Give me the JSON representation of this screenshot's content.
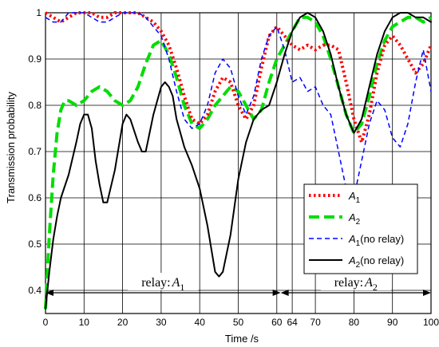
{
  "chart_data": {
    "type": "line",
    "xlabel": "Time /s",
    "ylabel": "Transmission probability",
    "xlim": [
      0,
      100
    ],
    "ylim": [
      0.35,
      1.0
    ],
    "x_ticks": [
      0,
      10,
      20,
      30,
      40,
      50,
      60,
      64,
      70,
      80,
      90,
      100
    ],
    "x_tick_labels": [
      "0",
      "10",
      "20",
      "30",
      "40",
      "50",
      "60",
      "64",
      "70",
      "80",
      "90",
      "100"
    ],
    "y_ticks": [
      0.4,
      0.5,
      0.6,
      0.7,
      0.8,
      0.9,
      1.0
    ],
    "y_tick_labels": [
      "0.4",
      "0.5",
      "0.6",
      "0.7",
      "0.8",
      "0.9",
      "1"
    ],
    "grid": true,
    "legend_position": "bottom-right",
    "annotations": [
      {
        "text_prefix": "relay:",
        "symbol": "A",
        "subscript": "1",
        "from": 0,
        "to": 61
      },
      {
        "text_prefix": "relay:",
        "symbol": "A",
        "subscript": "2",
        "from": 61,
        "to": 100
      }
    ],
    "series": [
      {
        "name": "A",
        "name_sub": "1",
        "name_suffix": "",
        "color": "#ff0000",
        "style": "dotted",
        "x": [
          0,
          2,
          4,
          6,
          8,
          10,
          12,
          14,
          16,
          18,
          20,
          22,
          24,
          26,
          28,
          30,
          32,
          34,
          36,
          38,
          40,
          42,
          44,
          46,
          48,
          50,
          52,
          54,
          56,
          58,
          60,
          61,
          62,
          64,
          66,
          68,
          70,
          72,
          74,
          76,
          78,
          80,
          82,
          84,
          86,
          88,
          90,
          92,
          94,
          96,
          98,
          100
        ],
        "y": [
          1.0,
          0.99,
          0.98,
          0.99,
          1.0,
          1.0,
          1.0,
          0.99,
          0.99,
          1.0,
          1.0,
          1.0,
          1.0,
          0.99,
          0.98,
          0.96,
          0.93,
          0.88,
          0.82,
          0.77,
          0.76,
          0.78,
          0.83,
          0.86,
          0.85,
          0.8,
          0.77,
          0.8,
          0.88,
          0.95,
          0.97,
          0.96,
          0.95,
          0.93,
          0.92,
          0.93,
          0.92,
          0.93,
          0.93,
          0.92,
          0.85,
          0.77,
          0.72,
          0.78,
          0.87,
          0.93,
          0.95,
          0.93,
          0.9,
          0.87,
          0.89,
          0.93
        ]
      },
      {
        "name": "A",
        "name_sub": "2",
        "name_suffix": "",
        "color": "#00dd00",
        "style": "dashed-thick",
        "x": [
          0,
          1,
          2,
          3,
          4,
          5,
          6,
          8,
          10,
          12,
          14,
          16,
          18,
          20,
          22,
          24,
          26,
          28,
          30,
          32,
          34,
          36,
          38,
          40,
          42,
          44,
          46,
          48,
          50,
          52,
          54,
          56,
          58,
          60,
          62,
          64,
          66,
          68,
          70,
          72,
          74,
          76,
          78,
          80,
          82,
          84,
          86,
          88,
          90,
          92,
          94,
          96,
          98,
          100
        ],
        "y": [
          0.36,
          0.52,
          0.65,
          0.74,
          0.79,
          0.81,
          0.81,
          0.8,
          0.81,
          0.83,
          0.84,
          0.83,
          0.81,
          0.8,
          0.81,
          0.84,
          0.89,
          0.93,
          0.94,
          0.91,
          0.86,
          0.8,
          0.76,
          0.75,
          0.77,
          0.8,
          0.82,
          0.84,
          0.83,
          0.8,
          0.77,
          0.79,
          0.85,
          0.9,
          0.93,
          0.96,
          0.99,
          0.99,
          0.98,
          0.95,
          0.9,
          0.84,
          0.78,
          0.74,
          0.76,
          0.82,
          0.89,
          0.94,
          0.97,
          0.98,
          0.99,
          0.99,
          0.98,
          0.99
        ]
      },
      {
        "name": "A",
        "name_sub": "1",
        "name_suffix": "(no relay)",
        "color": "#0000ff",
        "style": "dashed-thin",
        "x": [
          0,
          2,
          4,
          6,
          8,
          10,
          12,
          14,
          16,
          18,
          20,
          22,
          24,
          26,
          28,
          30,
          32,
          34,
          36,
          38,
          40,
          42,
          44,
          46,
          48,
          50,
          52,
          54,
          56,
          58,
          60,
          62,
          64,
          66,
          68,
          70,
          72,
          74,
          76,
          78,
          79,
          80,
          82,
          84,
          86,
          88,
          90,
          92,
          94,
          96,
          98,
          100
        ],
        "y": [
          0.99,
          0.98,
          0.98,
          1.0,
          1.0,
          1.0,
          0.99,
          0.98,
          0.98,
          0.99,
          1.0,
          1.0,
          1.0,
          0.99,
          0.97,
          0.95,
          0.9,
          0.83,
          0.77,
          0.75,
          0.76,
          0.8,
          0.87,
          0.9,
          0.88,
          0.82,
          0.78,
          0.82,
          0.9,
          0.95,
          0.97,
          0.92,
          0.85,
          0.86,
          0.83,
          0.84,
          0.8,
          0.78,
          0.7,
          0.62,
          0.59,
          0.6,
          0.68,
          0.76,
          0.81,
          0.79,
          0.73,
          0.71,
          0.76,
          0.85,
          0.92,
          0.83
        ]
      },
      {
        "name": "A",
        "name_sub": "2",
        "name_suffix": "(no relay)",
        "color": "#000000",
        "style": "solid",
        "x": [
          0,
          1,
          2,
          3,
          4,
          6,
          8,
          9,
          10,
          11,
          12,
          13,
          14,
          15,
          16,
          18,
          20,
          21,
          22,
          24,
          25,
          26,
          28,
          30,
          31,
          32,
          33,
          34,
          36,
          38,
          40,
          42,
          43,
          44,
          45,
          46,
          48,
          50,
          52,
          54,
          56,
          58,
          60,
          62,
          64,
          66,
          68,
          70,
          72,
          74,
          76,
          78,
          80,
          82,
          84,
          86,
          88,
          90,
          92,
          94,
          96,
          98,
          100
        ],
        "y": [
          0.36,
          0.44,
          0.51,
          0.56,
          0.6,
          0.65,
          0.72,
          0.76,
          0.78,
          0.78,
          0.75,
          0.68,
          0.63,
          0.59,
          0.59,
          0.66,
          0.76,
          0.78,
          0.77,
          0.72,
          0.7,
          0.7,
          0.78,
          0.84,
          0.85,
          0.84,
          0.82,
          0.77,
          0.71,
          0.67,
          0.62,
          0.54,
          0.49,
          0.44,
          0.43,
          0.44,
          0.52,
          0.64,
          0.72,
          0.77,
          0.79,
          0.8,
          0.85,
          0.91,
          0.96,
          0.99,
          1.0,
          0.99,
          0.96,
          0.91,
          0.84,
          0.78,
          0.74,
          0.77,
          0.84,
          0.91,
          0.96,
          0.99,
          1.0,
          1.0,
          0.99,
          0.99,
          0.98
        ]
      }
    ]
  }
}
